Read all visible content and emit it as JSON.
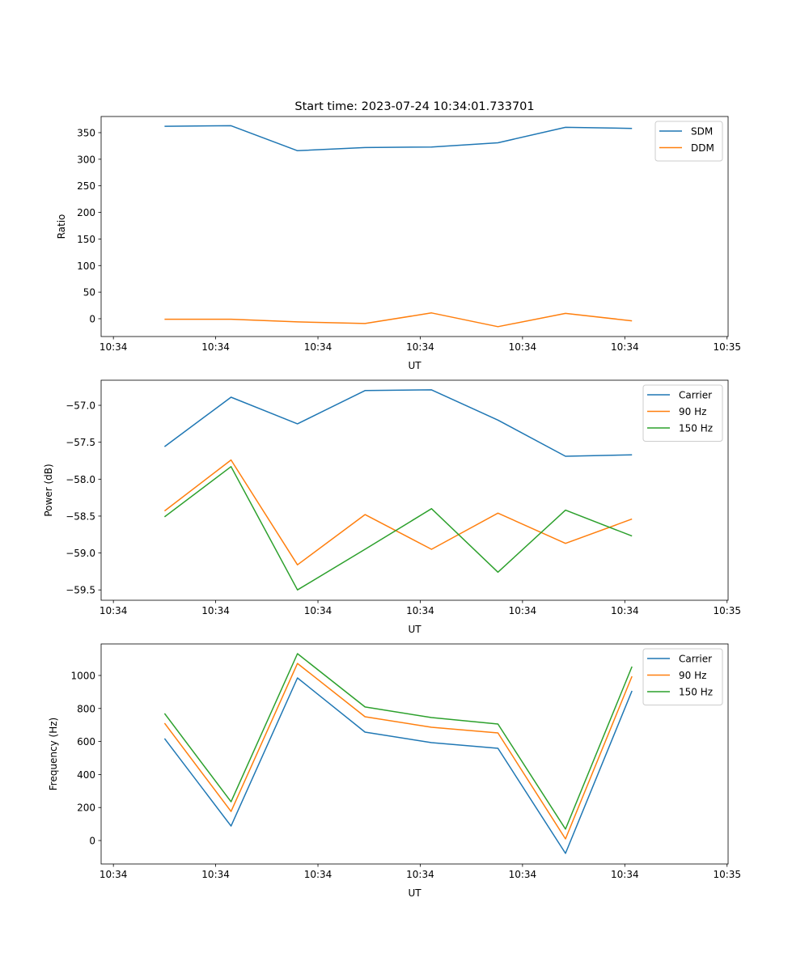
{
  "chart_data": [
    {
      "type": "line",
      "title": "Start time: 2023-07-24 10:34:01.733701",
      "xlabel": "UT",
      "ylabel": "Ratio",
      "x": [
        5.0,
        11.5,
        18.0,
        24.6,
        31.1,
        37.6,
        44.2,
        50.7
      ],
      "xlim": [
        -1.2,
        60.1
      ],
      "xticks": [
        0,
        10,
        20,
        30,
        40,
        50,
        60
      ],
      "xtick_labels": [
        "10:34",
        "10:34",
        "10:34",
        "10:34",
        "10:34",
        "10:34",
        "10:35"
      ],
      "ylim": [
        -33.5,
        380.4
      ],
      "yticks": [
        0,
        50,
        100,
        150,
        200,
        250,
        300,
        350
      ],
      "ytick_labels": [
        "0",
        "50",
        "100",
        "150",
        "200",
        "250",
        "300",
        "350"
      ],
      "legend": "top-right",
      "series": [
        {
          "name": "SDM",
          "color": "#1f77b4",
          "values": [
            362,
            363,
            316,
            322,
            323,
            331,
            360,
            358
          ]
        },
        {
          "name": "DDM",
          "color": "#ff7f0e",
          "values": [
            -1,
            -1,
            -6,
            -9,
            11,
            -15,
            10,
            -4
          ]
        }
      ]
    },
    {
      "type": "line",
      "title": "",
      "xlabel": "UT",
      "ylabel": "Power (dB)",
      "x": [
        5.0,
        11.5,
        18.0,
        24.6,
        31.1,
        37.6,
        44.2,
        50.7
      ],
      "xlim": [
        -1.2,
        60.1
      ],
      "xticks": [
        0,
        10,
        20,
        30,
        40,
        50,
        60
      ],
      "xtick_labels": [
        "10:34",
        "10:34",
        "10:34",
        "10:34",
        "10:34",
        "10:34",
        "10:35"
      ],
      "ylim": [
        -59.64,
        -56.66
      ],
      "yticks": [
        -59.5,
        -59.0,
        -58.5,
        -58.0,
        -57.5,
        -57.0
      ],
      "ytick_labels": [
        "−59.5",
        "−59.0",
        "−58.5",
        "−58.0",
        "−57.5",
        "−57.0"
      ],
      "legend": "top-right",
      "series": [
        {
          "name": "Carrier",
          "color": "#1f77b4",
          "values": [
            -57.56,
            -56.89,
            -57.25,
            -56.8,
            -56.79,
            -57.2,
            -57.69,
            -57.67
          ]
        },
        {
          "name": "90 Hz",
          "color": "#ff7f0e",
          "values": [
            -58.43,
            -57.74,
            -59.16,
            -58.48,
            -58.95,
            -58.46,
            -58.87,
            -58.54
          ]
        },
        {
          "name": "150 Hz",
          "color": "#2ca02c",
          "values": [
            -58.51,
            -57.83,
            -59.5,
            -58.95,
            -58.4,
            -59.26,
            -58.42,
            -58.77
          ]
        }
      ]
    },
    {
      "type": "line",
      "title": "",
      "xlabel": "UT",
      "ylabel": "Frequency (Hz)",
      "x": [
        5.0,
        11.5,
        18.0,
        24.6,
        31.1,
        37.6,
        44.2,
        50.7
      ],
      "xlim": [
        -1.2,
        60.1
      ],
      "xticks": [
        0,
        10,
        20,
        30,
        40,
        50,
        60
      ],
      "xtick_labels": [
        "10:34",
        "10:34",
        "10:34",
        "10:34",
        "10:34",
        "10:34",
        "10:35"
      ],
      "ylim": [
        -142,
        1191
      ],
      "yticks": [
        0,
        200,
        400,
        600,
        800,
        1000
      ],
      "ytick_labels": [
        "0",
        "200",
        "400",
        "600",
        "800",
        "1000"
      ],
      "legend": "top-right",
      "series": [
        {
          "name": "Carrier",
          "color": "#1f77b4",
          "values": [
            618,
            88,
            985,
            657,
            593,
            559,
            -78,
            907
          ]
        },
        {
          "name": "90 Hz",
          "color": "#ff7f0e",
          "values": [
            711,
            176,
            1073,
            750,
            686,
            652,
            10,
            995
          ]
        },
        {
          "name": "150 Hz",
          "color": "#2ca02c",
          "values": [
            770,
            235,
            1132,
            809,
            745,
            706,
            69,
            1054
          ]
        }
      ]
    }
  ]
}
